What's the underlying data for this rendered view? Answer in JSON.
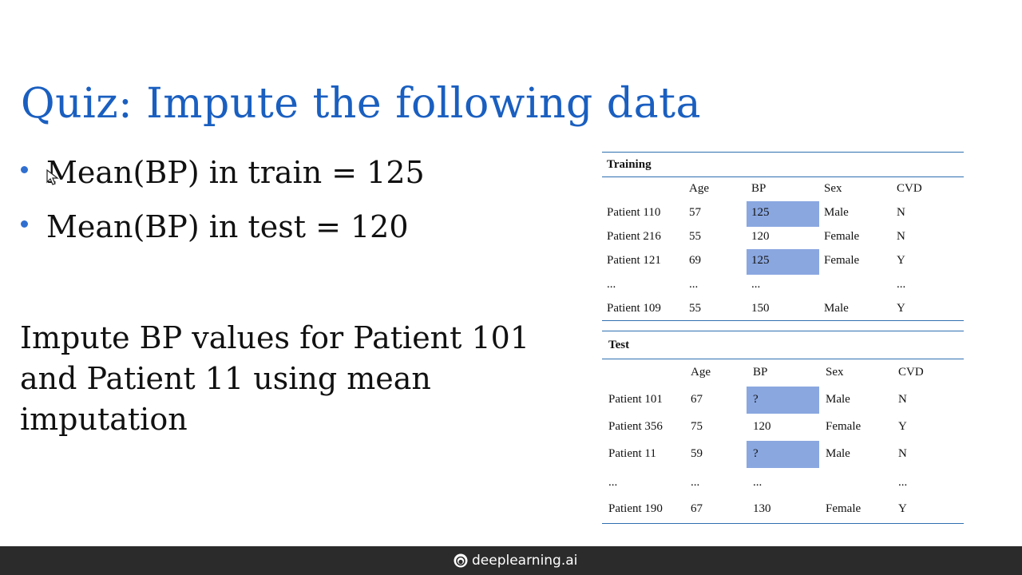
{
  "slide": {
    "title": "Quiz: Impute the following data",
    "bullets": [
      "Mean(BP) in train = 125",
      "Mean(BP) in test = 120"
    ],
    "instructions": "Impute BP values for Patient 101 and Patient 11 using mean imputation"
  },
  "training_table": {
    "name": "Training",
    "headers": [
      "",
      "Age",
      "BP",
      "Sex",
      "CVD"
    ],
    "rows": [
      [
        "Patient 110",
        "57",
        "125",
        "Male",
        "N"
      ],
      [
        "Patient 216",
        "55",
        "120",
        "Female",
        "N"
      ],
      [
        "Patient 121",
        "69",
        "125",
        "Female",
        "Y"
      ],
      [
        "...",
        "...",
        "...",
        "",
        "..."
      ],
      [
        "Patient 109",
        "55",
        "150",
        "Male",
        "Y"
      ]
    ],
    "highlighted_bp_rows": [
      0,
      2
    ]
  },
  "test_table": {
    "name": "Test",
    "headers": [
      "",
      "Age",
      "BP",
      "Sex",
      "CVD"
    ],
    "rows": [
      [
        "Patient 101",
        "67",
        "?",
        "Male",
        "N"
      ],
      [
        "Patient 356",
        "75",
        "120",
        "Female",
        "Y"
      ],
      [
        "Patient 11",
        "59",
        "?",
        "Male",
        "N"
      ],
      [
        "...",
        "...",
        "...",
        "",
        "..."
      ],
      [
        "Patient 190",
        "67",
        "130",
        "Female",
        "Y"
      ]
    ],
    "highlighted_bp_rows": [
      0,
      2
    ]
  },
  "colors": {
    "title": "#1a5fc0",
    "highlight": "#8aa7e0",
    "table_rule": "#2f6fb0",
    "bottom_bar": "#2b2b2b"
  },
  "footer": {
    "brand": "deeplearning.ai",
    "icon": "deeplearning-logo-icon"
  }
}
